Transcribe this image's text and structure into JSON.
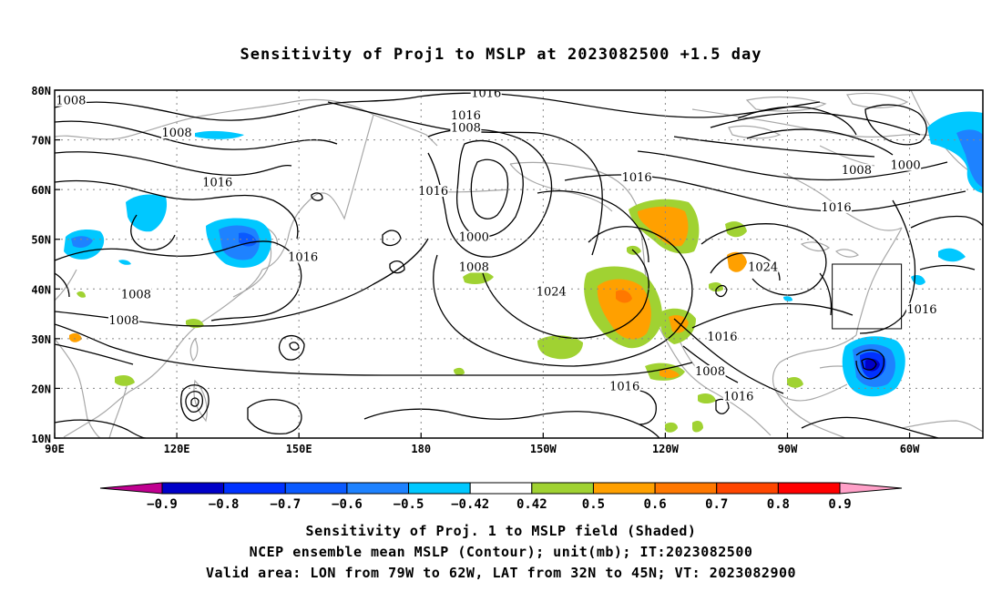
{
  "title": "Sensitivity of Proj1 to MSLP at 2023082500 +1.5 day",
  "x_ticks": [
    {
      "lon": 90,
      "label": "90E"
    },
    {
      "lon": 120,
      "label": "120E"
    },
    {
      "lon": 150,
      "label": "150E"
    },
    {
      "lon": 180,
      "label": "180"
    },
    {
      "lon": 210,
      "label": "150W"
    },
    {
      "lon": 240,
      "label": "120W"
    },
    {
      "lon": 270,
      "label": "90W"
    },
    {
      "lon": 300,
      "label": "60W"
    }
  ],
  "y_ticks": [
    {
      "lat": 80,
      "label": "80N"
    },
    {
      "lat": 70,
      "label": "70N"
    },
    {
      "lat": 60,
      "label": "60N"
    },
    {
      "lat": 50,
      "label": "50N"
    },
    {
      "lat": 40,
      "label": "40N"
    },
    {
      "lat": 30,
      "label": "30N"
    },
    {
      "lat": 20,
      "label": "20N"
    },
    {
      "lat": 10,
      "label": "10N"
    }
  ],
  "domain": {
    "lon_min": 90,
    "lon_max": 318,
    "lat_min": 10,
    "lat_max": 80
  },
  "valid_box": {
    "lon_min": 281,
    "lon_max": 298,
    "lat_min": 32,
    "lat_max": 45
  },
  "contour_labels": [
    {
      "lon": 94,
      "lat": 77.5,
      "text": "1008"
    },
    {
      "lon": 120,
      "lat": 71,
      "text": "1008"
    },
    {
      "lon": 130,
      "lat": 61,
      "text": "1016"
    },
    {
      "lon": 110,
      "lat": 38.5,
      "text": "1008"
    },
    {
      "lon": 107,
      "lat": 33.3,
      "text": "1008"
    },
    {
      "lon": 151,
      "lat": 46,
      "text": "1016"
    },
    {
      "lon": 196,
      "lat": 79,
      "text": "1016"
    },
    {
      "lon": 191,
      "lat": 74.5,
      "text": "1016"
    },
    {
      "lon": 191,
      "lat": 72,
      "text": "1008"
    },
    {
      "lon": 233,
      "lat": 62,
      "text": "1016"
    },
    {
      "lon": 183,
      "lat": 59.3,
      "text": "1016"
    },
    {
      "lon": 193,
      "lat": 50,
      "text": "1000"
    },
    {
      "lon": 193,
      "lat": 44,
      "text": "1008"
    },
    {
      "lon": 212,
      "lat": 39,
      "text": "1024"
    },
    {
      "lon": 230,
      "lat": 20,
      "text": "1016"
    },
    {
      "lon": 264,
      "lat": 44,
      "text": "1024"
    },
    {
      "lon": 282,
      "lat": 56,
      "text": "1016"
    },
    {
      "lon": 287,
      "lat": 63.5,
      "text": "1008"
    },
    {
      "lon": 299,
      "lat": 64.5,
      "text": "1000"
    },
    {
      "lon": 254,
      "lat": 30,
      "text": "1016"
    },
    {
      "lon": 251,
      "lat": 23,
      "text": "1008"
    },
    {
      "lon": 258,
      "lat": 18,
      "text": "1016"
    },
    {
      "lon": 303,
      "lat": 35.5,
      "text": "1016"
    }
  ],
  "colorbar": {
    "colors": [
      "#c00090",
      "#0000c8",
      "#0032ff",
      "#0a5aff",
      "#1e82ff",
      "#00c8ff",
      "#ffffff",
      "#a0d232",
      "#ffa000",
      "#ff7800",
      "#ff4600",
      "#ff0000",
      "#ffa0c8"
    ],
    "labels": [
      "−0.9",
      "−0.8",
      "−0.7",
      "−0.6",
      "−0.5",
      "−0.42",
      "0.42",
      "0.5",
      "0.6",
      "0.7",
      "0.8",
      "0.9"
    ]
  },
  "footer": {
    "line1": "Sensitivity of Proj. 1 to MSLP field (Shaded)",
    "line2": "NCEP ensemble mean MSLP (Contour); unit(mb); IT:2023082500",
    "line3": "Valid area: LON from 79W to 62W, LAT from 32N to 45N; VT: 2023082900"
  }
}
